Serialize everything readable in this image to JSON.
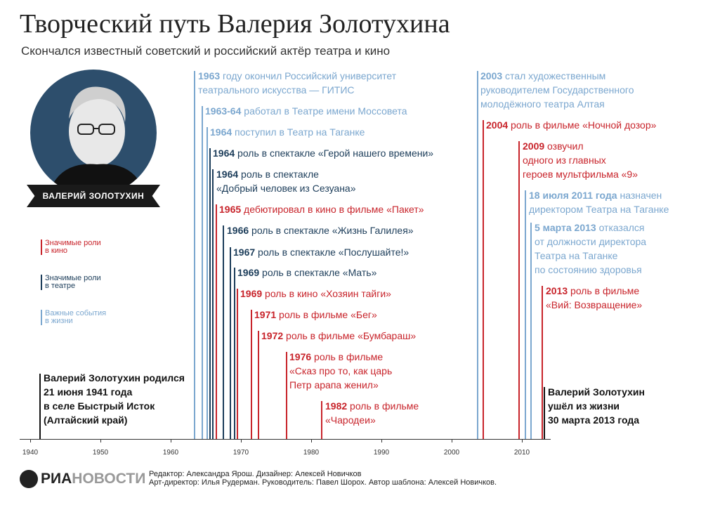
{
  "header": {
    "title": "Творческий путь Валерия Золотухина",
    "subtitle": "Скончался известный советский и российский актёр театра и кино"
  },
  "portrait": {
    "name": "ВАЛЕРИЙ ЗОЛОТУХИН"
  },
  "legend": [
    {
      "label_line1": "Значимые роли",
      "label_line2": "в кино",
      "color": "#c8242b"
    },
    {
      "label_line1": "Значимые роли",
      "label_line2": "в театре",
      "color": "#1c3d5a"
    },
    {
      "label_line1": "Важные события",
      "label_line2": "в жизни",
      "color": "#7ba7cf"
    }
  ],
  "colors": {
    "life": "#7ba7cf",
    "theatre": "#1c3d5a",
    "film": "#c8242b",
    "black": "#111111"
  },
  "events": [
    {
      "year": "1963",
      "line1": " году окончил Российский университет",
      "line2": "театрального искусства — ГИТИС",
      "line3": "",
      "type": "life"
    },
    {
      "year": "1963-64",
      "line1": " работал в Театре имени Моссовета",
      "line2": "",
      "line3": "",
      "type": "life"
    },
    {
      "year": "1964",
      "line1": " поступил в Театр на Таганке",
      "line2": "",
      "line3": "",
      "type": "life"
    },
    {
      "year": "1964",
      "line1": " роль в спектакле «Герой нашего времени»",
      "line2": "",
      "line3": "",
      "type": "theatre"
    },
    {
      "year": "1964",
      "line1": " роль в спектакле",
      "line2": "«Добрый человек из Сезуана»",
      "line3": "",
      "type": "theatre"
    },
    {
      "year": "1965",
      "line1": " дебютировал в кино в фильме «Пакет»",
      "line2": "",
      "line3": "",
      "type": "film"
    },
    {
      "year": "1966",
      "line1": " роль в спектакле «Жизнь Галилея»",
      "line2": "",
      "line3": "",
      "type": "theatre"
    },
    {
      "year": "1967",
      "line1": " роль в спектакле «Послушайте!»",
      "line2": "",
      "line3": "",
      "type": "theatre"
    },
    {
      "year": "1969",
      "line1": " роль в спектакле «Мать»",
      "line2": "",
      "line3": "",
      "type": "theatre"
    },
    {
      "year": "1969",
      "line1": " роль в кино «Хозяин тайги»",
      "line2": "",
      "line3": "",
      "type": "film"
    },
    {
      "year": "1971",
      "line1": " роль в фильме «Бег»",
      "line2": "",
      "line3": "",
      "type": "film"
    },
    {
      "year": "1972",
      "line1": " роль в фильме «Бумбараш»",
      "line2": "",
      "line3": "",
      "type": "film"
    },
    {
      "year": "1976",
      "line1": " роль в фильме",
      "line2": "«Сказ про то, как царь",
      "line3": "Петр арапа женил»",
      "type": "film"
    },
    {
      "year": "1982",
      "line1": " роль в фильме",
      "line2": "«Чародеи»",
      "line3": "",
      "type": "film"
    },
    {
      "year": "2003",
      "line1": " стал художественным",
      "line2": "руководителем Государственного",
      "line3": "молодёжного театра Алтая",
      "type": "life"
    },
    {
      "year": "2004",
      "line1": " роль в фильме «Ночной дозор»",
      "line2": "",
      "line3": "",
      "type": "film"
    },
    {
      "year": "2009",
      "line1": " озвучил",
      "line2": "одного из главных",
      "line3": "героев мультфильма «9»",
      "type": "film"
    },
    {
      "year": "18 июля 2011 года",
      "line1": " назначен",
      "line2": "директором Театра на Таганке",
      "line3": "",
      "type": "life"
    },
    {
      "year": "5 марта 2013",
      "line1": " отказался",
      "line2": "от должности директора",
      "line3": "Театра на Таганке",
      "line4": "по состоянию здоровья",
      "type": "life"
    },
    {
      "year": "2013",
      "line1": " роль в фильме",
      "line2": "«Вий: Возвращение»",
      "line3": "",
      "type": "film"
    }
  ],
  "birth": {
    "line1": "Валерий Золотухин родился",
    "line2": "21 июня 1941 года",
    "line3": "в селе Быстрый Исток",
    "line4": "(Алтайский край)"
  },
  "death": {
    "line1": "Валерий Золотухин",
    "line2": "ушёл из жизни",
    "line3": "30 марта 2013 года"
  },
  "axis": {
    "ticks": [
      "1940",
      "1950",
      "1960",
      "1970",
      "1980",
      "1990",
      "2000",
      "2010"
    ]
  },
  "footer": {
    "logo_left": "РИА",
    "logo_right": "НОВОСТИ",
    "credits_line1": "Редактор: Александра Ярош. Дизайнер: Алексей Новичков",
    "credits_line2": "Арт-директор: Илья Рудерман. Руководитель: Павел Шорох. Автор шаблона: Алексей Новичков."
  }
}
